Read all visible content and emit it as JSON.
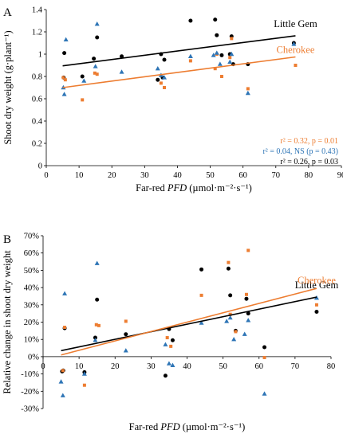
{
  "chart_data": [
    {
      "type": "scatter",
      "panel_label": "A",
      "xlabel_prefix": "Far-red ",
      "xlabel_italic": "PFD",
      "xlabel_suffix": " (µmol·m⁻²·s⁻¹)",
      "ylabel": "Shoot dry weight (g·plant⁻¹)",
      "xlim": [
        0,
        90
      ],
      "ylim": [
        0,
        1.4
      ],
      "xticks": [
        0,
        10,
        20,
        30,
        40,
        50,
        60,
        70,
        80,
        90
      ],
      "xtick_labels": [
        "0",
        "10",
        "20",
        "30",
        "40",
        "50",
        "60",
        "70",
        "80",
        "90"
      ],
      "yticks": [
        0,
        0.2,
        0.4,
        0.6,
        0.8,
        1.0,
        1.2,
        1.4
      ],
      "ytick_labels": [
        "0",
        "0.2",
        "0.4",
        "0.6",
        "0.8",
        "1",
        "1.2",
        "1.4"
      ],
      "series": [
        {
          "name": "Little Gem",
          "marker": "circle",
          "color": "#000000",
          "points": [
            [
              5.5,
              1.01
            ],
            [
              5.3,
              0.79
            ],
            [
              11,
              0.8
            ],
            [
              14.5,
              0.96
            ],
            [
              15.5,
              1.15
            ],
            [
              23,
              0.98
            ],
            [
              34,
              0.77
            ],
            [
              35,
              1.0
            ],
            [
              36,
              0.95
            ],
            [
              35.5,
              0.79
            ],
            [
              44,
              1.3
            ],
            [
              51.5,
              1.31
            ],
            [
              52,
              1.17
            ],
            [
              53.5,
              0.99
            ],
            [
              56.5,
              1.16
            ],
            [
              56,
              1.0
            ],
            [
              57,
              0.91
            ],
            [
              61.5,
              0.91
            ],
            [
              75.5,
              1.1
            ]
          ],
          "trend": {
            "x": [
              5,
              76
            ],
            "y": [
              0.895,
              1.165
            ],
            "label": "Little Gem",
            "stats": "r² = 0.26, p = 0.03"
          }
        },
        {
          "name": "Cherokee",
          "marker": "square",
          "color": "#ED7D31",
          "points": [
            [
              5.2,
              0.79
            ],
            [
              5.8,
              0.77
            ],
            [
              11,
              0.59
            ],
            [
              14.8,
              0.83
            ],
            [
              15.5,
              0.82
            ],
            [
              35,
              0.74
            ],
            [
              36,
              0.7
            ],
            [
              44,
              0.94
            ],
            [
              51.5,
              0.87
            ],
            [
              52,
              1.0
            ],
            [
              53.5,
              0.8
            ],
            [
              56.5,
              1.14
            ],
            [
              56,
              0.97
            ],
            [
              61.5,
              0.69
            ],
            [
              76,
              0.9
            ]
          ],
          "trend": {
            "x": [
              5,
              76
            ],
            "y": [
              0.7,
              0.975
            ],
            "label": "Cherokee",
            "stats": "r² = 0.32, p = 0.01"
          }
        },
        {
          "name": "",
          "marker": "triangle",
          "color": "#2E75B6",
          "points": [
            [
              5.2,
              0.7
            ],
            [
              5.5,
              0.64
            ],
            [
              6,
              1.13
            ],
            [
              11.5,
              0.76
            ],
            [
              15,
              0.89
            ],
            [
              15.5,
              1.27
            ],
            [
              23,
              0.84
            ],
            [
              34,
              0.87
            ],
            [
              35,
              0.81
            ],
            [
              36,
              0.79
            ],
            [
              44,
              0.98
            ],
            [
              51,
              0.99
            ],
            [
              52,
              1.01
            ],
            [
              53,
              0.91
            ],
            [
              56,
              0.93
            ],
            [
              56.5,
              1.0
            ],
            [
              61.5,
              0.65
            ],
            [
              75.5,
              1.09
            ]
          ],
          "trend": {
            "stats": "r² = 0.04, NS (p = 0.43)"
          }
        }
      ]
    },
    {
      "type": "scatter",
      "panel_label": "B",
      "xlabel_prefix": "Far-red ",
      "xlabel_italic": "PFD",
      "xlabel_suffix": " (µmol·m⁻²·s⁻¹)",
      "ylabel": "Relative change in shoot dry weight",
      "xlim": [
        0,
        80
      ],
      "ylim": [
        -0.3,
        0.7
      ],
      "xticks": [
        0,
        10,
        20,
        30,
        40,
        50,
        60,
        70,
        80
      ],
      "xtick_labels": [
        "0",
        "10",
        "20",
        "30",
        "40",
        "50",
        "60",
        "70",
        "80"
      ],
      "yticks": [
        -0.3,
        -0.2,
        -0.1,
        0,
        0.1,
        0.2,
        0.3,
        0.4,
        0.5,
        0.6,
        0.7
      ],
      "ytick_labels": [
        "-30%",
        "-20%",
        "-10%",
        "0%",
        "10%",
        "20%",
        "30%",
        "40%",
        "50%",
        "60%",
        "70%"
      ],
      "series": [
        {
          "name": "Little Gem",
          "marker": "circle",
          "color": "#000000",
          "points": [
            [
              5.3,
              -0.085
            ],
            [
              5.6,
              -0.08
            ],
            [
              6,
              0.165
            ],
            [
              11.5,
              -0.09
            ],
            [
              14.5,
              0.11
            ],
            [
              15,
              0.33
            ],
            [
              23,
              0.13
            ],
            [
              34,
              -0.11
            ],
            [
              35,
              0.16
            ],
            [
              36,
              0.095
            ],
            [
              44,
              0.505
            ],
            [
              51.5,
              0.51
            ],
            [
              52,
              0.355
            ],
            [
              53.5,
              0.15
            ],
            [
              56.5,
              0.335
            ],
            [
              57,
              0.25
            ],
            [
              61.5,
              0.055
            ],
            [
              76,
              0.26
            ]
          ],
          "trend": {
            "x": [
              5,
              76
            ],
            "y": [
              0.035,
              0.345
            ],
            "label": "Little Gem"
          }
        },
        {
          "name": "Cherokee",
          "marker": "square",
          "color": "#ED7D31",
          "points": [
            [
              5.5,
              -0.08
            ],
            [
              6,
              0.17
            ],
            [
              11.5,
              -0.165
            ],
            [
              14.8,
              0.185
            ],
            [
              15.5,
              0.18
            ],
            [
              23,
              0.205
            ],
            [
              34.5,
              0.11
            ],
            [
              35.5,
              0.06
            ],
            [
              44,
              0.355
            ],
            [
              51.5,
              0.545
            ],
            [
              52,
              0.245
            ],
            [
              53.5,
              0.145
            ],
            [
              56.5,
              0.36
            ],
            [
              57,
              0.615
            ],
            [
              61.5,
              -0.005
            ],
            [
              76,
              0.3
            ]
          ],
          "trend": {
            "x": [
              5,
              76
            ],
            "y": [
              0.01,
              0.395
            ],
            "label": "Cherokee"
          }
        },
        {
          "name": "",
          "marker": "triangle",
          "color": "#2E75B6",
          "points": [
            [
              5,
              -0.145
            ],
            [
              5.5,
              -0.225
            ],
            [
              6,
              0.365
            ],
            [
              11.5,
              -0.1
            ],
            [
              14.5,
              0.095
            ],
            [
              15,
              0.54
            ],
            [
              23,
              0.035
            ],
            [
              34,
              0.07
            ],
            [
              35,
              -0.04
            ],
            [
              36,
              -0.05
            ],
            [
              44,
              0.195
            ],
            [
              51,
              0.205
            ],
            [
              52,
              0.225
            ],
            [
              53,
              0.1
            ],
            [
              56,
              0.13
            ],
            [
              57,
              0.21
            ],
            [
              61.5,
              -0.215
            ],
            [
              76,
              0.34
            ]
          ]
        }
      ]
    }
  ]
}
